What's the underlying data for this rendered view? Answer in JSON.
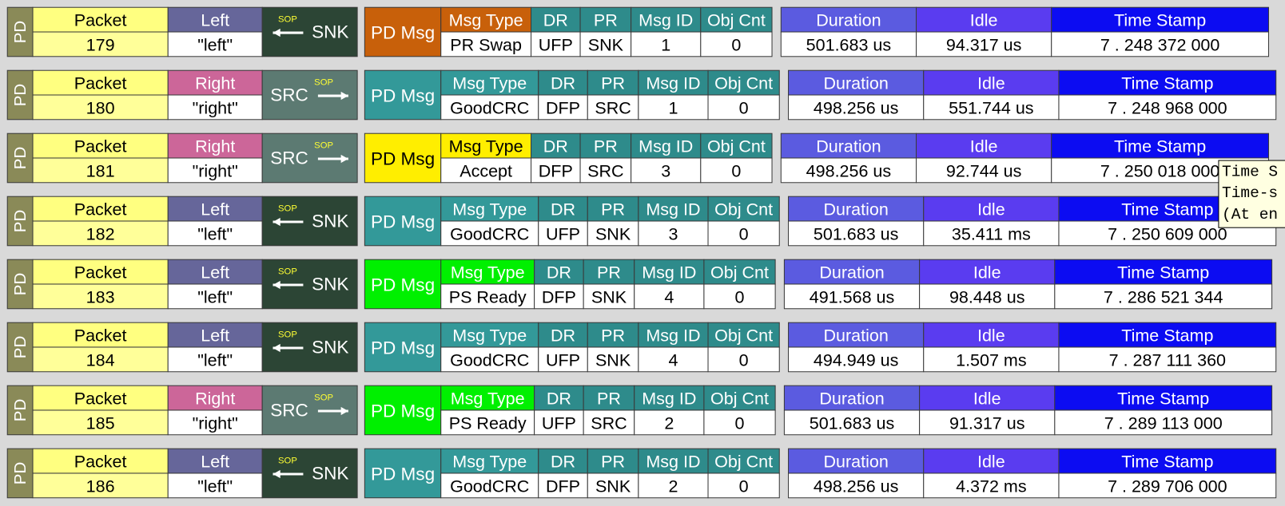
{
  "labels": {
    "pd": "PD",
    "packet": "Packet",
    "sop": "SOP",
    "pd_msg": "PD Msg",
    "msg_type": "Msg Type",
    "dr": "DR",
    "pr": "PR",
    "msg_id": "Msg ID",
    "obj_cnt": "Obj Cnt",
    "duration": "Duration",
    "idle": "Idle",
    "time_stamp": "Time Stamp"
  },
  "rows": [
    {
      "packet": 179,
      "side": "Left",
      "side_value": "\"left\"",
      "side_color": "#66669a",
      "role": "SNK",
      "direction": "left",
      "role_color": "#2c4535",
      "msg_color": "#c8600a",
      "msg_type": "PR Swap",
      "dr": "UFP",
      "pr": "SNK",
      "msg_id": 1,
      "obj_cnt": 0,
      "duration": "501.683 us",
      "idle": "94.317 us",
      "time_stamp": "7 . 248 372 000"
    },
    {
      "packet": 180,
      "side": "Right",
      "side_value": "\"right\"",
      "side_color": "#cc6699",
      "role": "SRC",
      "direction": "right",
      "role_color": "#5c7a72",
      "msg_color": "#339999",
      "msg_type": "GoodCRC",
      "dr": "DFP",
      "pr": "SRC",
      "msg_id": 1,
      "obj_cnt": 0,
      "duration": "498.256 us",
      "idle": "551.744 us",
      "time_stamp": "7 . 248 968 000"
    },
    {
      "packet": 181,
      "side": "Right",
      "side_value": "\"right\"",
      "side_color": "#cc6699",
      "role": "SRC",
      "direction": "right",
      "role_color": "#5c7a72",
      "msg_color": "#ffee00",
      "msg_type": "Accept",
      "dr": "DFP",
      "pr": "SRC",
      "msg_id": 3,
      "obj_cnt": 0,
      "duration": "498.256 us",
      "idle": "92.744 us",
      "time_stamp": "7 . 250 018 000"
    },
    {
      "packet": 182,
      "side": "Left",
      "side_value": "\"left\"",
      "side_color": "#66669a",
      "role": "SNK",
      "direction": "left",
      "role_color": "#2c4535",
      "msg_color": "#339999",
      "msg_type": "GoodCRC",
      "dr": "UFP",
      "pr": "SNK",
      "msg_id": 3,
      "obj_cnt": 0,
      "duration": "501.683 us",
      "idle": "35.411 ms",
      "time_stamp": "7 . 250 609 000"
    },
    {
      "packet": 183,
      "side": "Left",
      "side_value": "\"left\"",
      "side_color": "#66669a",
      "role": "SNK",
      "direction": "left",
      "role_color": "#2c4535",
      "msg_color": "#00f000",
      "msg_type": "PS Ready",
      "dr": "DFP",
      "pr": "SNK",
      "msg_id": 4,
      "obj_cnt": 0,
      "duration": "491.568 us",
      "idle": "98.448 us",
      "time_stamp": "7 . 286 521 344"
    },
    {
      "packet": 184,
      "side": "Left",
      "side_value": "\"left\"",
      "side_color": "#66669a",
      "role": "SNK",
      "direction": "left",
      "role_color": "#2c4535",
      "msg_color": "#339999",
      "msg_type": "GoodCRC",
      "dr": "UFP",
      "pr": "SNK",
      "msg_id": 4,
      "obj_cnt": 0,
      "duration": "494.949 us",
      "idle": "1.507 ms",
      "time_stamp": "7 . 287 111 360"
    },
    {
      "packet": 185,
      "side": "Right",
      "side_value": "\"right\"",
      "side_color": "#cc6699",
      "role": "SRC",
      "direction": "right",
      "role_color": "#5c7a72",
      "msg_color": "#00f000",
      "msg_type": "PS Ready",
      "dr": "UFP",
      "pr": "SRC",
      "msg_id": 2,
      "obj_cnt": 0,
      "duration": "501.683 us",
      "idle": "91.317 us",
      "time_stamp": "7 . 289 113 000"
    },
    {
      "packet": 186,
      "side": "Left",
      "side_value": "\"left\"",
      "side_color": "#66669a",
      "role": "SNK",
      "direction": "left",
      "role_color": "#2c4535",
      "msg_color": "#339999",
      "msg_type": "GoodCRC",
      "dr": "DFP",
      "pr": "SNK",
      "msg_id": 2,
      "obj_cnt": 0,
      "duration": "498.256 us",
      "idle": "4.372 ms",
      "time_stamp": "7 . 289 706 000"
    }
  ],
  "tooltip": [
    "Time S",
    "Time-s",
    "(At en"
  ]
}
